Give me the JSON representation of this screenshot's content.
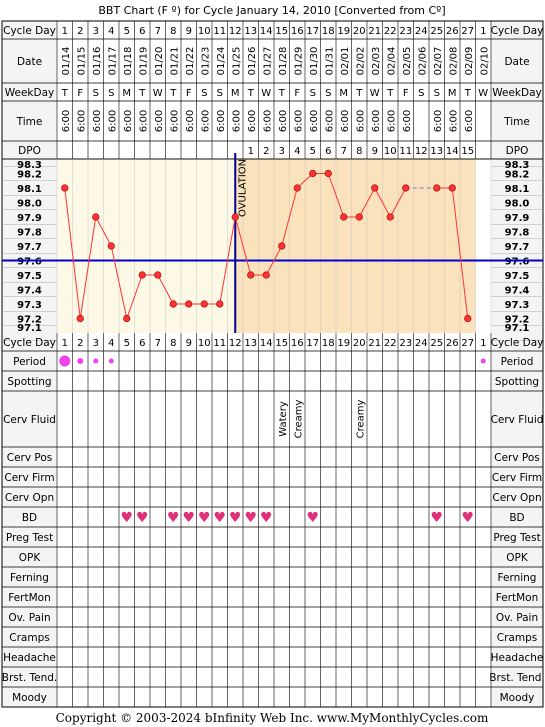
{
  "title": "BBT Chart (F º) for Cycle January 14, 2010  [Converted from Cº]",
  "footer": "Copyright © 2003-2024 bInfinity Web Inc.     www.MyMonthlyCycles.com",
  "row_labels": {
    "cycle_day": "Cycle Day",
    "date": "Date",
    "weekday": "WeekDay",
    "time": "Time",
    "dpo": "DPO",
    "period": "Period",
    "spotting": "Spotting",
    "cerv_fluid": "Cerv Fluid",
    "cerv_pos": "Cerv Pos",
    "cerv_firm": "Cerv Firm",
    "cerv_opn": "Cerv Opn",
    "bd": "BD",
    "preg_test": "Preg Test",
    "opk": "OPK",
    "ferning": "Ferning",
    "fertmon": "FertMon",
    "ov_pain": "Ov. Pain",
    "cramps": "Cramps",
    "headache": "Headache",
    "brst_tend": "Brst. Tend.",
    "moody": "Moody"
  },
  "ovulation_label": "OVULATION",
  "heart_symbol": "♥",
  "colors": {
    "grid": "#000000",
    "pre_ov_bg": "#fdf9e6",
    "post_ov_bg": "#fae3bc",
    "label_bg": "#f4f4f4",
    "temp_line": "#ff3333",
    "point_fill": "#ff3333",
    "coverline": "#0000cc",
    "ovulation_line": "#000099",
    "heart": "#e0307a",
    "period_dot": "#ee44ee"
  },
  "chart_data": {
    "type": "line",
    "title": "BBT Chart (F º) for Cycle January 14, 2010  [Converted from Cº]",
    "cycle_days": [
      "1",
      "2",
      "3",
      "4",
      "5",
      "6",
      "7",
      "8",
      "9",
      "10",
      "11",
      "12",
      "13",
      "14",
      "15",
      "16",
      "17",
      "18",
      "19",
      "20",
      "21",
      "22",
      "23",
      "24",
      "25",
      "26",
      "27",
      "1"
    ],
    "dates": [
      "01/14",
      "01/15",
      "01/16",
      "01/17",
      "01/18",
      "01/19",
      "01/20",
      "01/21",
      "01/22",
      "01/23",
      "01/24",
      "01/25",
      "01/26",
      "01/27",
      "01/28",
      "01/29",
      "01/30",
      "01/31",
      "02/01",
      "02/02",
      "02/03",
      "02/04",
      "02/05",
      "02/06",
      "02/07",
      "02/08",
      "02/09",
      "02/10"
    ],
    "weekdays": [
      "T",
      "F",
      "S",
      "S",
      "M",
      "T",
      "W",
      "T",
      "F",
      "S",
      "S",
      "M",
      "T",
      "W",
      "T",
      "F",
      "S",
      "S",
      "M",
      "T",
      "W",
      "T",
      "F",
      "S",
      "S",
      "M",
      "T",
      "W"
    ],
    "times": [
      "6:00",
      "6:00",
      "6:00",
      "6:00",
      "6:00",
      "6:00",
      "6:00",
      "6:00",
      "6:00",
      "6:00",
      "6:00",
      "6:00",
      "6:00",
      "6:00",
      "6:00",
      "6:00",
      "6:00",
      "6:00",
      "6:00",
      "6:00",
      "6:00",
      "6:00",
      "6:00",
      "",
      "6:00",
      "6:00",
      "6:00",
      ""
    ],
    "dpo": [
      "",
      "",
      "",
      "",
      "",
      "",
      "",
      "",
      "",
      "",
      "",
      "",
      "1",
      "2",
      "3",
      "4",
      "5",
      "6",
      "7",
      "8",
      "9",
      "10",
      "11",
      "12",
      "13",
      "14",
      "15",
      ""
    ],
    "yticks": [
      "98.3",
      "98.2",
      "98.1",
      "98.0",
      "97.9",
      "97.8",
      "97.7",
      "97.6",
      "97.5",
      "97.4",
      "97.3",
      "97.2",
      "97.1"
    ],
    "ylim": [
      97.1,
      98.3
    ],
    "series": [
      {
        "values": [
          98.1,
          97.2,
          97.9,
          97.7,
          97.2,
          97.5,
          97.5,
          97.3,
          97.3,
          97.3,
          97.3,
          97.9,
          97.5,
          97.5,
          97.7,
          98.1,
          98.2,
          98.2,
          97.9,
          97.9,
          98.1,
          97.9,
          98.1,
          null,
          98.1,
          98.1,
          97.2,
          null
        ]
      }
    ],
    "coverline": 97.6,
    "ovulation_day": 12,
    "period": [
      2,
      3,
      1,
      1,
      0,
      0,
      0,
      0,
      0,
      0,
      0,
      0,
      0,
      0,
      0,
      0,
      0,
      0,
      0,
      0,
      0,
      0,
      0,
      0,
      0,
      0,
      0,
      1
    ],
    "cerv_fluid": [
      "",
      "",
      "",
      "",
      "",
      "",
      "",
      "",
      "",
      "",
      "",
      "",
      "",
      "",
      "Watery",
      "Creamy",
      "",
      "",
      "",
      "Creamy",
      "",
      "",
      "",
      "",
      "",
      "",
      "",
      ""
    ],
    "bd": [
      0,
      0,
      0,
      0,
      1,
      1,
      0,
      1,
      1,
      1,
      1,
      1,
      1,
      1,
      0,
      0,
      1,
      0,
      0,
      0,
      0,
      0,
      0,
      0,
      1,
      0,
      1,
      0
    ]
  }
}
